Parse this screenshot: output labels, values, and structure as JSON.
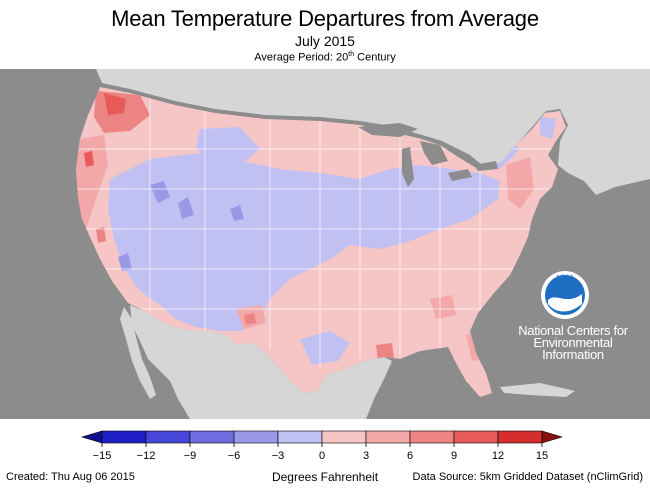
{
  "header": {
    "title": "Mean Temperature Departures from Average",
    "subtitle": "July 2015",
    "period_prefix": "Average Period: 20",
    "period_sup": "th",
    "period_suffix": " Century"
  },
  "org": {
    "logo_text": "NOAA",
    "name_lines": [
      "National Centers for",
      "Environmental",
      "Information"
    ]
  },
  "legend": {
    "units": "Degrees Fahrenheit",
    "ticks": [
      "−15",
      "−12",
      "−9",
      "−6",
      "−3",
      "0",
      "3",
      "6",
      "9",
      "12",
      "15"
    ],
    "colors": [
      "#1f1fc8",
      "#4646d8",
      "#6e6ee0",
      "#9999e8",
      "#c0c0f2",
      "#f6c6c6",
      "#f2a8a8",
      "#ec8484",
      "#e65a5a",
      "#d42e2e"
    ],
    "low_color": "#10108a",
    "high_color": "#8a1010"
  },
  "colors": {
    "ocean": "#8c8c8c",
    "land_outside": "#d6d6d6",
    "lakes": "#8c8c8c",
    "state_borders": "#ffffff"
  },
  "footer": {
    "created": "Created: Thu Aug 06 2015",
    "source": "Data Source: 5km Gridded Dataset (nClimGrid)"
  }
}
